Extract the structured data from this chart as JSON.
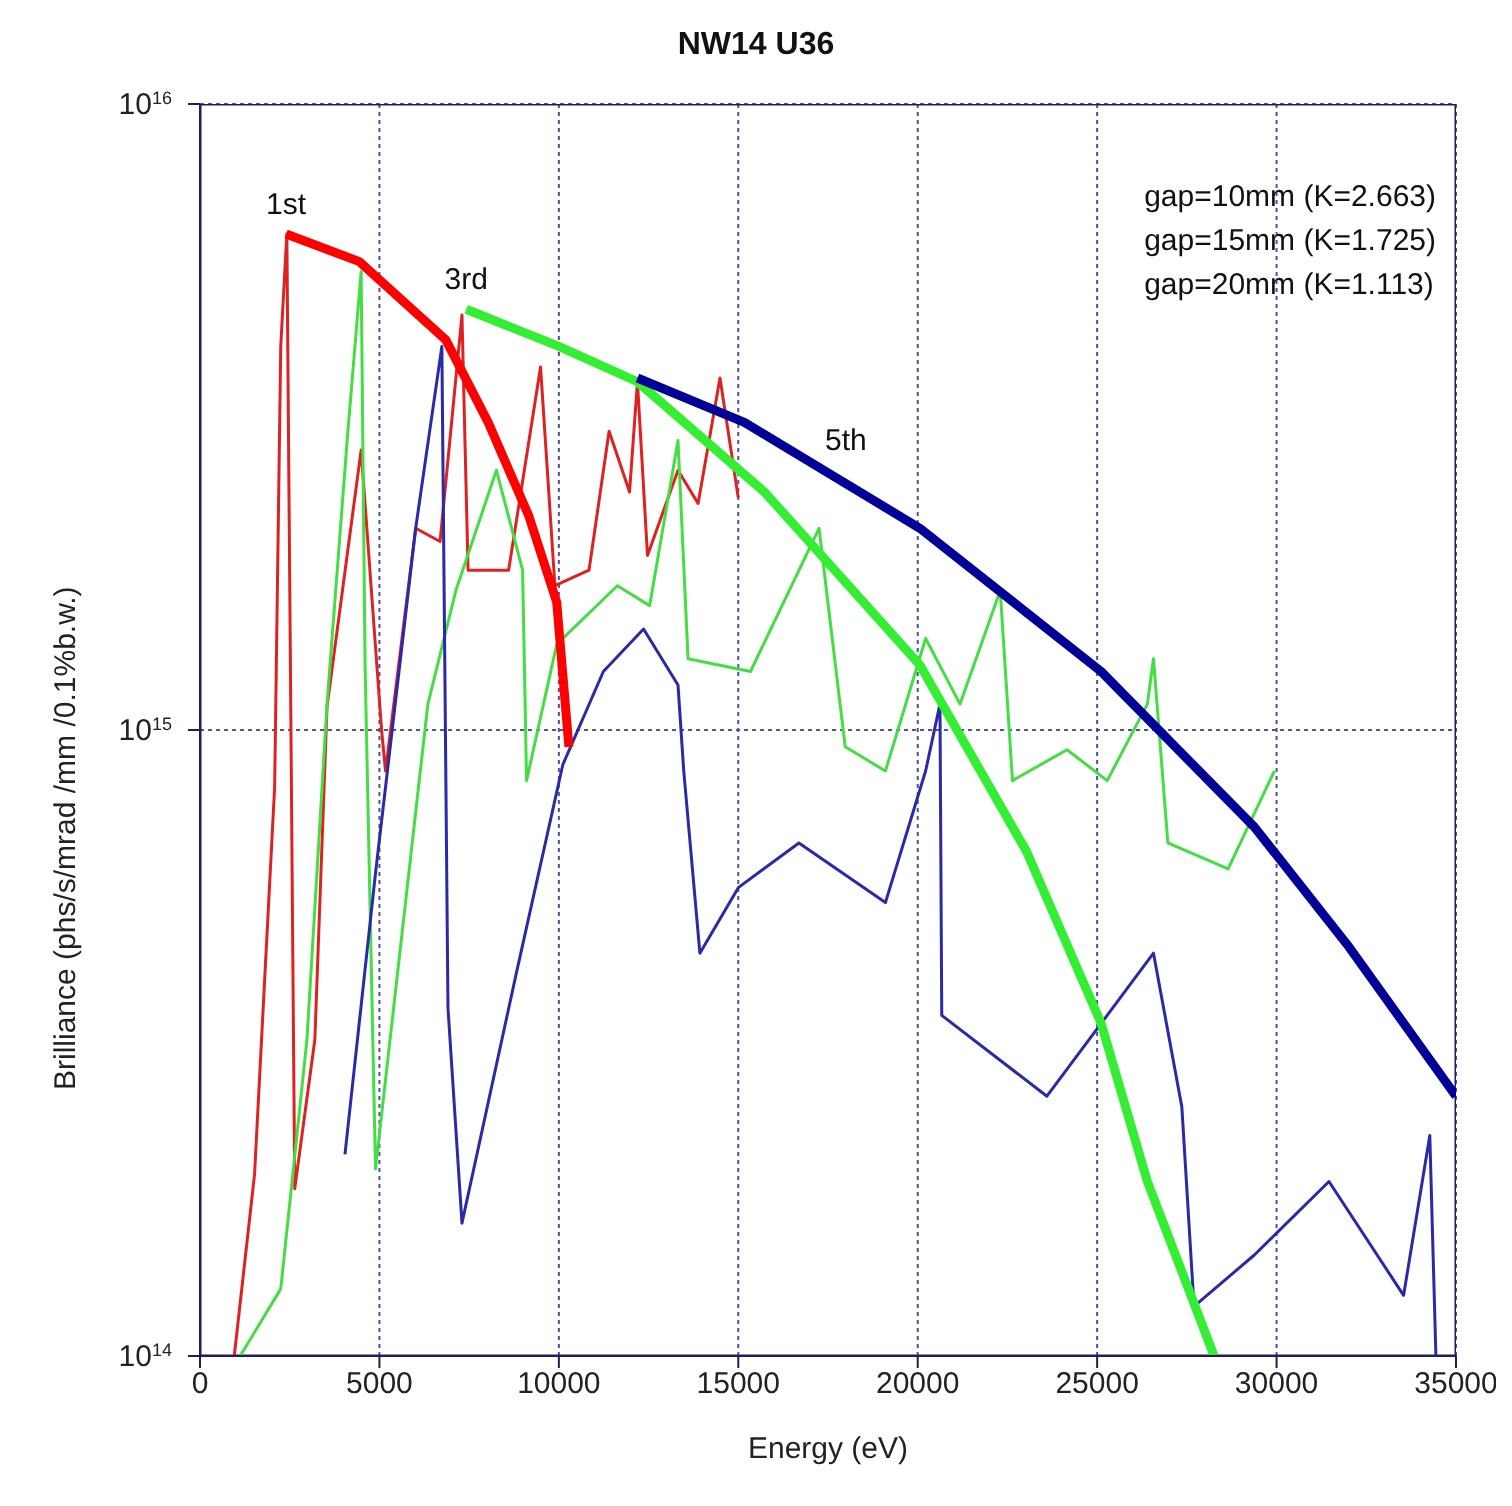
{
  "chart_data": {
    "type": "line",
    "title": "NW14 U36",
    "xlabel": "Energy (eV)",
    "ylabel": "Brilliance (phs/s/mrad /mm /0.1%b.w.)",
    "log": "y",
    "grid": true,
    "xlim": [
      0,
      35000
    ],
    "xticks": [
      0,
      5000,
      10000,
      15000,
      20000,
      25000,
      30000,
      35000
    ],
    "ylim": [
      100000000000000.0,
      1e+16
    ],
    "yticks": [
      {
        "value": 100000000000000.0,
        "label": "10$^{14}$"
      },
      {
        "value": 1000000000000000.0,
        "label": "10$^{15}$"
      },
      {
        "value": 1e+16,
        "label": "10$^{16}$"
      }
    ],
    "annotations": [
      {
        "text": "1st",
        "x": 2400,
        "y": 6200000000000000.0
      },
      {
        "text": "3rd",
        "x": 7420,
        "y": 4700000000000000.0
      },
      {
        "text": "5th",
        "x": 18000,
        "y": 2600000000000000.0
      },
      "gap=10mm (K=2.663)",
      "gap=15mm (K=1.725)",
      "gap=20mm (K=1.113)"
    ],
    "series": [
      {
        "color": "#dd2222",
        "x": [
          955,
          1520,
          2080,
          2250,
          2420,
          2640,
          3200,
          3540,
          4490,
          5060,
          5170,
          6010,
          6690,
          7300,
          7470,
          8600,
          9490,
          9890,
          10840,
          11400,
          11970,
          12190,
          12470,
          13320,
          13880,
          14490,
          15000
        ],
        "values": [
          100000000000000.0,
          195000000000000.0,
          810000000000000.0,
          4100000000000000.0,
          6200000000000000.0,
          185000000000000.0,
          320000000000000.0,
          1090000000000000.0,
          2800000000000000.0,
          1000000000000000.0,
          860000000000000.0,
          2100000000000000.0,
          2000000000000000.0,
          4600000000000000.0,
          1800000000000000.0,
          1800000000000000.0,
          3800000000000000.0,
          1700000000000000.0,
          1800000000000000.0,
          3000000000000000.0,
          2400000000000000.0,
          3600000000000000.0,
          1900000000000000.0,
          2600000000000000.0,
          2300000000000000.0,
          3650000000000000.0,
          2350000000000000.0
        ]
      },
      {
        "color": "#44dd44",
        "x": [
          1120,
          2250,
          2980,
          3540,
          4100,
          4490,
          4600,
          4890,
          6350,
          7130,
          8260,
          8990,
          9100,
          9940,
          11630,
          12530,
          13320,
          13600,
          15340,
          17250,
          17980,
          19100,
          20220,
          21180,
          22300,
          22640,
          24160,
          25280,
          26400,
          26570,
          26970,
          28650,
          29940
        ],
        "values": [
          100000000000000.0,
          128000000000000.0,
          320000000000000.0,
          1100000000000000.0,
          2900000000000000.0,
          5400000000000000.0,
          1270000000000000.0,
          199000000000000.0,
          1100000000000000.0,
          1670000000000000.0,
          2600000000000000.0,
          1800000000000000.0,
          830000000000000.0,
          1370000000000000.0,
          1700000000000000.0,
          1580000000000000.0,
          2900000000000000.0,
          1300000000000000.0,
          1240000000000000.0,
          2100000000000000.0,
          940000000000000.0,
          860000000000000.0,
          1400000000000000.0,
          1100000000000000.0,
          1670000000000000.0,
          830000000000000.0,
          930000000000000.0,
          830000000000000.0,
          1100000000000000.0,
          1300000000000000.0,
          660000000000000.0,
          600000000000000.0,
          860000000000000.0
        ]
      },
      {
        "color": "#2a2aa8",
        "x": [
          4040,
          4890,
          6010,
          6740,
          6910,
          7300,
          8820,
          10110,
          11240,
          12360,
          13320,
          13480,
          13930,
          15000,
          16690,
          19100,
          20220,
          20620,
          20670,
          23600,
          26570,
          27360,
          27700,
          29380,
          31460,
          33540,
          34270,
          34440
        ],
        "values": [
          210000000000000.0,
          590000000000000.0,
          2100000000000000.0,
          4100000000000000.0,
          360000000000000.0,
          163000000000000.0,
          410000000000000.0,
          880000000000000.0,
          1240000000000000.0,
          1450000000000000.0,
          1180000000000000.0,
          860000000000000.0,
          440000000000000.0,
          560000000000000.0,
          660000000000000.0,
          530000000000000.0,
          860000000000000.0,
          1100000000000000.0,
          350000000000000.0,
          260000000000000.0,
          440000000000000.0,
          250000000000000.0,
          120000000000000.0,
          145000000000000.0,
          190000000000000.0,
          125000000000000.0,
          225000000000000.0,
          100000000000000.0
        ]
      },
      {
        "color": "#ff0000",
        "x": [
          2400,
          4440,
          6850,
          8030,
          9160,
          9940,
          10280
        ],
        "values": [
          6200000000000000.0,
          5600000000000000.0,
          4200000000000000.0,
          3100000000000000.0,
          2200000000000000.0,
          1600000000000000.0,
          940000000000000.0
        ]
      },
      {
        "color": "#33ee33",
        "x": [
          7420,
          10000,
          12190,
          15730,
          20060,
          23030,
          25110,
          26400,
          28260
        ],
        "values": [
          4700000000000000.0,
          4100000000000000.0,
          3600000000000000.0,
          2400000000000000.0,
          1270000000000000.0,
          640000000000000.0,
          340000000000000.0,
          190000000000000.0,
          100000000000000.0
        ]
      },
      {
        "color": "#000099",
        "x": [
          12190,
          15170,
          20060,
          25110,
          29380,
          32020,
          35000
        ],
        "values": [
          3650000000000000.0,
          3100000000000000.0,
          2100000000000000.0,
          1240000000000000.0,
          700000000000000.0,
          450000000000000.0,
          260000000000000.0
        ]
      }
    ]
  }
}
